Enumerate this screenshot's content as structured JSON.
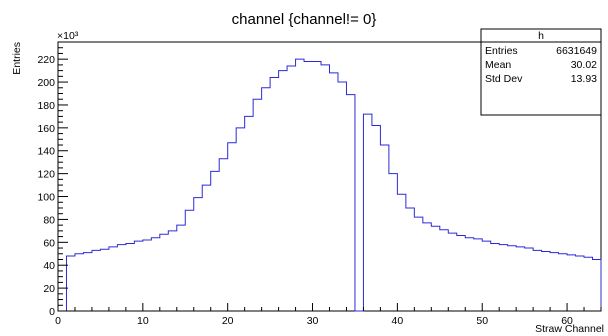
{
  "chart_data": {
    "type": "bar",
    "style": "step-histogram",
    "title": "channel {channel!= 0}",
    "xlabel": "Straw Channel",
    "ylabel": "Entries",
    "y_multiplier_label": "×10³",
    "xlim": [
      0,
      64
    ],
    "ylim": [
      0,
      235
    ],
    "x_ticks": [
      0,
      10,
      20,
      30,
      40,
      50,
      60
    ],
    "x_tick_labels": [
      "0",
      "10",
      "20",
      "30",
      "40",
      "50",
      "60"
    ],
    "y_ticks": [
      0,
      20,
      40,
      60,
      80,
      100,
      120,
      140,
      160,
      180,
      200,
      220
    ],
    "y_tick_labels": [
      "0",
      "20",
      "40",
      "60",
      "80",
      "100",
      "120",
      "140",
      "160",
      "180",
      "200",
      "220"
    ],
    "grid": false,
    "legend": "none",
    "bin_width": 1,
    "x": [
      0,
      1,
      2,
      3,
      4,
      5,
      6,
      7,
      8,
      9,
      10,
      11,
      12,
      13,
      14,
      15,
      16,
      17,
      18,
      19,
      20,
      21,
      22,
      23,
      24,
      25,
      26,
      27,
      28,
      29,
      30,
      31,
      32,
      33,
      34,
      35,
      36,
      37,
      38,
      39,
      40,
      41,
      42,
      43,
      44,
      45,
      46,
      47,
      48,
      49,
      50,
      51,
      52,
      53,
      54,
      55,
      56,
      57,
      58,
      59,
      60,
      61,
      62,
      63
    ],
    "series": [
      {
        "values": [
          0,
          48,
          50,
          51,
          53,
          54,
          56,
          58,
          59,
          61,
          62,
          64,
          67,
          70,
          75,
          88,
          99,
          110,
          122,
          133,
          147,
          160,
          170,
          185,
          195,
          204,
          210,
          214,
          220,
          218,
          218,
          215,
          208,
          200,
          189,
          0,
          172,
          162,
          145,
          120,
          102,
          90,
          82,
          77,
          74,
          71,
          68,
          66,
          64,
          63,
          61,
          59,
          58,
          57,
          56,
          55,
          53,
          52,
          51,
          50,
          49,
          48,
          47,
          45
        ],
        "color": "#2b2bd6"
      }
    ],
    "stats_box": {
      "name": "h",
      "rows": [
        {
          "label": "Entries",
          "value": "6631649"
        },
        {
          "label": "Mean",
          "value": "30.02"
        },
        {
          "label": "Std Dev",
          "value": "13.93"
        }
      ]
    }
  }
}
